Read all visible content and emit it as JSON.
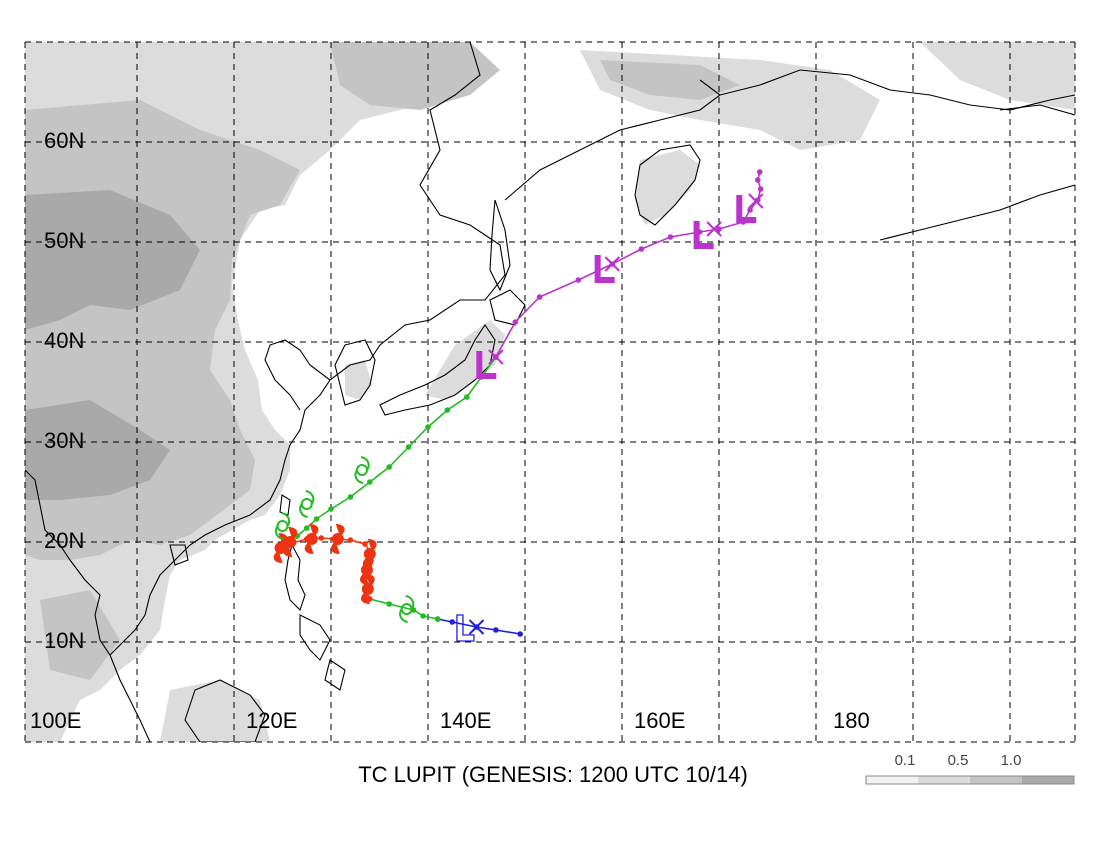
{
  "map": {
    "title": "TC LUPIT (GENESIS: 1200 UTC 10/14)",
    "lat_labels": [
      "60N",
      "50N",
      "40N",
      "30N",
      "20N",
      "10N"
    ],
    "lon_labels": [
      "100E",
      "120E",
      "140E",
      "160E",
      "180"
    ],
    "extent": {
      "lon_min": 100,
      "lon_max": 205,
      "lat_min": 2,
      "lat_max": 70
    },
    "gridlines": "dashed every 10 degrees",
    "terrain_colors": [
      "#dcdcdc",
      "#c4c4c4",
      "#a9a9a9"
    ],
    "coast_color": "#000000"
  },
  "scale_bar": {
    "labels": [
      "0.1",
      "0.5",
      "1.0"
    ],
    "colors": [
      "#f2f2f2",
      "#dcdcdc",
      "#c4c4c4",
      "#a9a9a9"
    ]
  },
  "track": {
    "colors": {
      "depression": "#2020dd",
      "storm": "#22bb22",
      "typhoon": "#ee3311",
      "extratropical": "#bb33cc"
    },
    "segments": [
      {
        "stage": "depression",
        "points": [
          [
            149.5,
            10.8
          ],
          [
            147,
            11.2
          ],
          [
            145,
            11.5
          ],
          [
            142.5,
            12.0
          ],
          [
            141,
            12.3
          ]
        ]
      },
      {
        "stage": "storm",
        "points": [
          [
            141,
            12.3
          ],
          [
            139.5,
            12.6
          ],
          [
            138.5,
            13.2
          ],
          [
            136,
            13.8
          ],
          [
            134,
            14.3
          ]
        ]
      },
      {
        "stage": "typhoon",
        "points": [
          [
            134,
            14.3
          ],
          [
            133.5,
            15.2
          ],
          [
            133.6,
            16.5
          ],
          [
            134,
            17.8
          ],
          [
            134.2,
            18.8
          ],
          [
            133.5,
            19.8
          ],
          [
            132,
            20.2
          ],
          [
            130.5,
            20.3
          ],
          [
            129,
            20.4
          ],
          [
            127.5,
            20.3
          ],
          [
            126,
            19.9
          ],
          [
            124.8,
            19.6
          ],
          [
            125.3,
            20.1
          ],
          [
            126.5,
            20.6
          ]
        ]
      },
      {
        "stage": "storm",
        "points": [
          [
            126.5,
            20.6
          ],
          [
            127.5,
            21.4
          ],
          [
            128.5,
            22.3
          ],
          [
            130,
            23.3
          ],
          [
            132,
            24.5
          ],
          [
            134,
            26.0
          ],
          [
            136,
            27.5
          ],
          [
            138,
            29.5
          ],
          [
            140,
            31.5
          ],
          [
            142,
            33.2
          ],
          [
            144,
            34.5
          ],
          [
            145.5,
            36.5
          ],
          [
            147,
            38.5
          ]
        ]
      },
      {
        "stage": "extratropical",
        "points": [
          [
            147,
            38.5
          ],
          [
            149,
            42.0
          ],
          [
            151.5,
            44.5
          ],
          [
            155.5,
            46.2
          ],
          [
            159,
            47.8
          ],
          [
            162,
            49.3
          ],
          [
            165,
            50.5
          ],
          [
            168,
            51.0
          ],
          [
            170,
            51.3
          ],
          [
            172.5,
            52.0
          ],
          [
            173.2,
            53.2
          ],
          [
            174,
            54.2
          ],
          [
            174.3,
            55.3
          ],
          [
            174.0,
            56.2
          ],
          [
            174.2,
            57.0
          ]
        ]
      }
    ],
    "markers": [
      {
        "stage": "depression",
        "kind": "cross",
        "at": [
          145,
          11.5
        ]
      },
      {
        "stage": "depression",
        "kind": "L",
        "at": [
          143.5,
          11.2
        ]
      },
      {
        "stage": "storm",
        "kind": "storm-symbol",
        "at": [
          137.8,
          13.3
        ]
      },
      {
        "stage": "typhoon",
        "kind": "typhoon-symbol",
        "at": [
          133.8,
          15.3
        ]
      },
      {
        "stage": "typhoon",
        "kind": "typhoon-symbol",
        "at": [
          133.7,
          17.2
        ]
      },
      {
        "stage": "typhoon",
        "kind": "typhoon-symbol",
        "at": [
          134.0,
          18.8
        ]
      },
      {
        "stage": "typhoon",
        "kind": "typhoon-symbol",
        "at": [
          130.7,
          20.3
        ]
      },
      {
        "stage": "typhoon",
        "kind": "typhoon-symbol",
        "at": [
          128.0,
          20.3
        ]
      },
      {
        "stage": "typhoon",
        "kind": "typhoon-symbol",
        "at": [
          125.8,
          20.0
        ]
      },
      {
        "stage": "typhoon",
        "kind": "typhoon-symbol",
        "at": [
          124.8,
          19.4
        ]
      },
      {
        "stage": "storm",
        "kind": "storm-symbol",
        "at": [
          125.0,
          21.6
        ]
      },
      {
        "stage": "storm",
        "kind": "storm-symbol",
        "at": [
          127.5,
          23.8
        ]
      },
      {
        "stage": "storm",
        "kind": "storm-symbol",
        "at": [
          133.2,
          27.2
        ]
      },
      {
        "stage": "extratropical",
        "kind": "cross",
        "at": [
          147.0,
          38.5
        ]
      },
      {
        "stage": "extratropical",
        "kind": "L",
        "at": [
          145.6,
          37.4
        ]
      },
      {
        "stage": "extratropical",
        "kind": "cross",
        "at": [
          159.0,
          47.8
        ]
      },
      {
        "stage": "extratropical",
        "kind": "L",
        "at": [
          157.8,
          47.0
        ]
      },
      {
        "stage": "extratropical",
        "kind": "cross",
        "at": [
          169.5,
          51.3
        ]
      },
      {
        "stage": "extratropical",
        "kind": "L",
        "at": [
          168.0,
          50.4
        ]
      },
      {
        "stage": "extratropical",
        "kind": "cross",
        "at": [
          173.8,
          54.1
        ]
      },
      {
        "stage": "extratropical",
        "kind": "L",
        "at": [
          172.4,
          53.0
        ]
      }
    ]
  }
}
